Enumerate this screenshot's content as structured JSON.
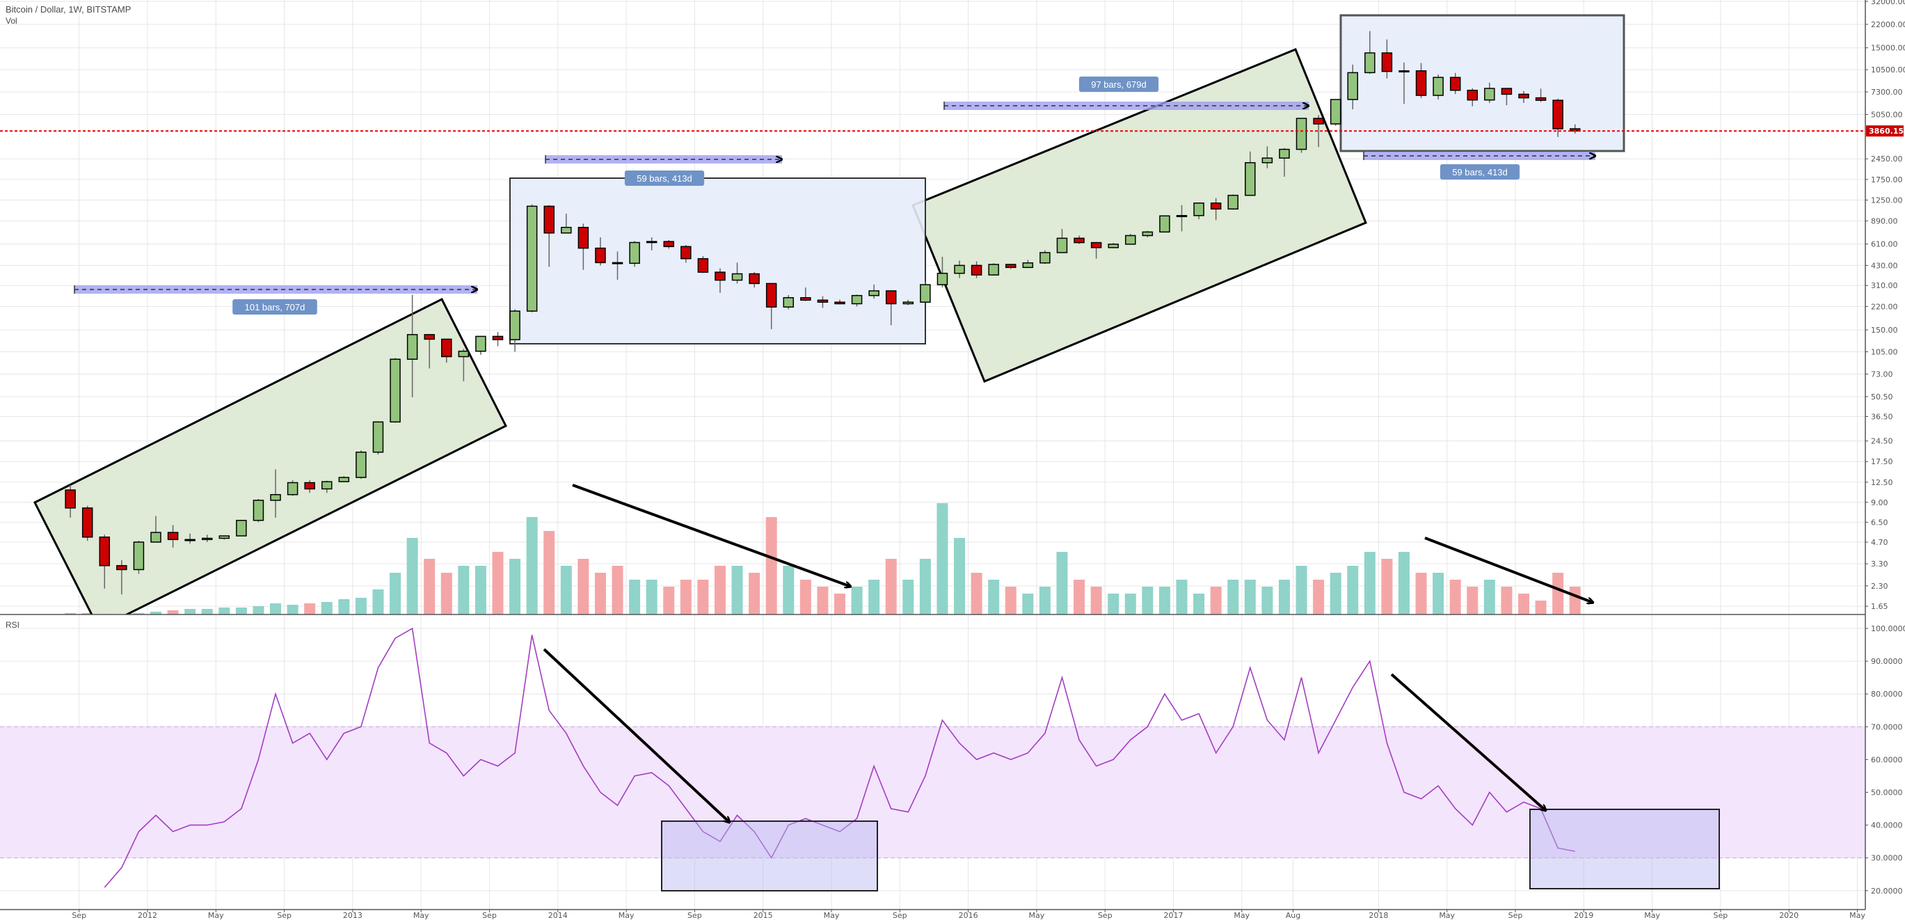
{
  "header": {
    "title": "Bitcoin / Dollar, 1W, BITSTAMP",
    "vol_label": "Vol",
    "rsi_label": "RSI"
  },
  "last_price": {
    "value": "3860.15",
    "color": "#cc0000"
  },
  "colors": {
    "up": "#93c47d",
    "down": "#cc0000",
    "vol_up": "#8fd3c9",
    "vol_down": "#f4a6a6",
    "channel_fill": "#dde9d5",
    "range_fill": "#e6edf9",
    "rsi_line": "#a33dc2",
    "rsi_band": "#f3e5fc",
    "date_range": "#9f9ff0",
    "badge": "#6f93c7"
  },
  "annotations": {
    "date_ranges": [
      "101 bars, 707d",
      "59 bars, 413d",
      "97 bars, 679d",
      "59 bars, 413d"
    ]
  },
  "chart_data": {
    "type": "candlestick",
    "title": "Bitcoin / Dollar, 1W, BITSTAMP",
    "y_scale": "log",
    "ylim": [
      1.5,
      32000
    ],
    "grid": true,
    "price_ticks": [
      "32000.00",
      "22000.00",
      "15000.00",
      "10500.00",
      "7300.00",
      "5050.00",
      "2450.00",
      "1750.00",
      "1250.00",
      "890.00",
      "610.00",
      "430.00",
      "310.00",
      "220.00",
      "150.00",
      "105.00",
      "73.00",
      "50.50",
      "36.50",
      "24.50",
      "17.50",
      "12.50",
      "9.00",
      "6.50",
      "4.70",
      "3.30",
      "2.30",
      "1.65"
    ],
    "rsi_ticks": [
      "100.0000",
      "90.0000",
      "80.0000",
      "70.0000",
      "60.0000",
      "50.0000",
      "40.0000",
      "30.0000",
      "20.0000"
    ],
    "rsi_band": [
      30,
      70
    ],
    "time_ticks": [
      {
        "label": "Sep",
        "date": "2011-09"
      },
      {
        "label": "2012",
        "date": "2012-01"
      },
      {
        "label": "May",
        "date": "2012-05"
      },
      {
        "label": "Sep",
        "date": "2012-09"
      },
      {
        "label": "2013",
        "date": "2013-01"
      },
      {
        "label": "May",
        "date": "2013-05"
      },
      {
        "label": "Sep",
        "date": "2013-09"
      },
      {
        "label": "2014",
        "date": "2014-01"
      },
      {
        "label": "May",
        "date": "2014-05"
      },
      {
        "label": "Sep",
        "date": "2014-09"
      },
      {
        "label": "2015",
        "date": "2015-01"
      },
      {
        "label": "May",
        "date": "2015-05"
      },
      {
        "label": "Sep",
        "date": "2015-09"
      },
      {
        "label": "2016",
        "date": "2016-01"
      },
      {
        "label": "May",
        "date": "2016-05"
      },
      {
        "label": "Sep",
        "date": "2016-09"
      },
      {
        "label": "2017",
        "date": "2017-01"
      },
      {
        "label": "May",
        "date": "2017-05"
      },
      {
        "label": "Aug",
        "date": "2017-08"
      },
      {
        "label": "2018",
        "date": "2018-01"
      },
      {
        "label": "May",
        "date": "2018-05"
      },
      {
        "label": "Sep",
        "date": "2018-09"
      },
      {
        "label": "2019",
        "date": "2019-01"
      },
      {
        "label": "May",
        "date": "2019-05"
      },
      {
        "label": "Sep",
        "date": "2019-09"
      },
      {
        "label": "2020",
        "date": "2020-01"
      },
      {
        "label": "May",
        "date": "2020-05"
      }
    ],
    "candles": [
      [
        "2011-08",
        11,
        12,
        7,
        8.2
      ],
      [
        "2011-09",
        8.2,
        8.5,
        4.8,
        5.1
      ],
      [
        "2011-10",
        5.1,
        5.3,
        2.2,
        3.2
      ],
      [
        "2011-11",
        3.2,
        3.5,
        2,
        3
      ],
      [
        "2011-12",
        3,
        4.8,
        2.8,
        4.7
      ],
      [
        "2012-01",
        4.7,
        7.2,
        4.7,
        5.5
      ],
      [
        "2012-02",
        5.5,
        6.2,
        4.3,
        4.9
      ],
      [
        "2012-03",
        4.9,
        5.4,
        4.6,
        4.9
      ],
      [
        "2012-04",
        4.9,
        5.3,
        4.7,
        5.0
      ],
      [
        "2012-05",
        5.0,
        5.2,
        4.9,
        5.2
      ],
      [
        "2012-06",
        5.2,
        6.7,
        5.2,
        6.7
      ],
      [
        "2012-07",
        6.7,
        9.5,
        6.5,
        9.3
      ],
      [
        "2012-08",
        9.3,
        15.4,
        7,
        10.2
      ],
      [
        "2012-09",
        10.2,
        12.9,
        10,
        12.4
      ],
      [
        "2012-10",
        12.4,
        12.9,
        10.5,
        11.2
      ],
      [
        "2012-11",
        11.2,
        12.8,
        10.5,
        12.6
      ],
      [
        "2012-12",
        12.6,
        13.8,
        12.5,
        13.5
      ],
      [
        "2013-01",
        13.5,
        21,
        13.2,
        20.4
      ],
      [
        "2013-02",
        20.4,
        33.5,
        19.6,
        33.4
      ],
      [
        "2013-03",
        33.4,
        95,
        33,
        93
      ],
      [
        "2013-04",
        93,
        266,
        50,
        139
      ],
      [
        "2013-05",
        139,
        140,
        80,
        129
      ],
      [
        "2013-06",
        129,
        129,
        88,
        97
      ],
      [
        "2013-07",
        97,
        110,
        65,
        106
      ],
      [
        "2013-08",
        106,
        135,
        100,
        135
      ],
      [
        "2013-09",
        135,
        145,
        115,
        128
      ],
      [
        "2013-10",
        128,
        210,
        105,
        204
      ],
      [
        "2013-11",
        204,
        1163,
        200,
        1130
      ],
      [
        "2013-12",
        1130,
        1150,
        420,
        730
      ],
      [
        "2014-01",
        730,
        1000,
        740,
        800
      ],
      [
        "2014-02",
        800,
        850,
        400,
        570
      ],
      [
        "2014-03",
        570,
        680,
        430,
        450
      ],
      [
        "2014-04",
        450,
        540,
        340,
        445
      ],
      [
        "2014-05",
        445,
        640,
        420,
        625
      ],
      [
        "2014-06",
        625,
        680,
        550,
        635
      ],
      [
        "2014-07",
        635,
        650,
        565,
        585
      ],
      [
        "2014-08",
        585,
        600,
        450,
        480
      ],
      [
        "2014-09",
        480,
        500,
        380,
        385
      ],
      [
        "2014-10",
        385,
        410,
        275,
        338
      ],
      [
        "2014-11",
        338,
        450,
        320,
        375
      ],
      [
        "2014-12",
        375,
        385,
        300,
        320
      ],
      [
        "2015-01",
        320,
        320,
        152,
        218
      ],
      [
        "2015-02",
        218,
        265,
        210,
        254
      ],
      [
        "2015-03",
        254,
        300,
        240,
        244
      ],
      [
        "2015-04",
        244,
        260,
        215,
        236
      ],
      [
        "2015-05",
        236,
        246,
        228,
        230
      ],
      [
        "2015-06",
        230,
        267,
        220,
        263
      ],
      [
        "2015-07",
        263,
        315,
        250,
        284
      ],
      [
        "2015-08",
        284,
        285,
        162,
        230
      ],
      [
        "2015-09",
        230,
        245,
        225,
        236
      ],
      [
        "2015-10",
        236,
        330,
        236,
        314
      ],
      [
        "2015-11",
        314,
        495,
        300,
        378
      ],
      [
        "2015-12",
        378,
        465,
        350,
        430
      ],
      [
        "2016-01",
        430,
        460,
        350,
        368
      ],
      [
        "2016-02",
        368,
        445,
        365,
        437
      ],
      [
        "2016-03",
        437,
        440,
        405,
        416
      ],
      [
        "2016-04",
        416,
        470,
        414,
        448
      ],
      [
        "2016-05",
        448,
        550,
        440,
        530
      ],
      [
        "2016-06",
        530,
        780,
        530,
        670
      ],
      [
        "2016-07",
        670,
        700,
        610,
        624
      ],
      [
        "2016-08",
        624,
        630,
        480,
        575
      ],
      [
        "2016-09",
        575,
        620,
        570,
        608
      ],
      [
        "2016-10",
        608,
        720,
        605,
        700
      ],
      [
        "2016-11",
        700,
        755,
        680,
        742
      ],
      [
        "2016-12",
        742,
        970,
        740,
        965
      ],
      [
        "2017-01",
        965,
        1150,
        750,
        970
      ],
      [
        "2017-02",
        970,
        1200,
        915,
        1190
      ],
      [
        "2017-03",
        1190,
        1290,
        900,
        1080
      ],
      [
        "2017-04",
        1080,
        1370,
        1070,
        1350
      ],
      [
        "2017-05",
        1350,
        2760,
        1350,
        2300
      ],
      [
        "2017-06",
        2300,
        3000,
        2100,
        2480
      ],
      [
        "2017-07",
        2480,
        2920,
        1830,
        2860
      ],
      [
        "2017-08",
        2860,
        4740,
        2700,
        4740
      ],
      [
        "2017-09",
        4740,
        5000,
        2970,
        4330
      ],
      [
        "2017-10",
        4330,
        6470,
        4200,
        6450
      ],
      [
        "2017-11",
        6450,
        11400,
        5500,
        10000
      ],
      [
        "2017-12",
        10000,
        19700,
        9800,
        13800
      ],
      [
        "2018-01",
        13800,
        17200,
        9100,
        10200
      ],
      [
        "2018-02",
        10200,
        11800,
        6000,
        10300
      ],
      [
        "2018-03",
        10300,
        11700,
        6600,
        6900
      ],
      [
        "2018-04",
        6900,
        9700,
        6450,
        9250
      ],
      [
        "2018-05",
        9250,
        9950,
        7050,
        7500
      ],
      [
        "2018-06",
        7500,
        7750,
        5780,
        6400
      ],
      [
        "2018-07",
        6400,
        8500,
        6100,
        7730
      ],
      [
        "2018-08",
        7730,
        7760,
        5880,
        7030
      ],
      [
        "2018-09",
        7030,
        7400,
        6100,
        6630
      ],
      [
        "2018-10",
        6630,
        7700,
        6200,
        6370
      ],
      [
        "2018-11",
        6370,
        6550,
        3500,
        4000
      ],
      [
        "2018-12",
        4000,
        4300,
        3700,
        3860.15
      ]
    ],
    "volume_relative": [
      1,
      1,
      1,
      1,
      1,
      2,
      3,
      4,
      4,
      5,
      5,
      6,
      8,
      7,
      8,
      9,
      11,
      12,
      18,
      30,
      55,
      40,
      30,
      35,
      35,
      45,
      40,
      70,
      60,
      35,
      40,
      30,
      35,
      25,
      25,
      20,
      25,
      25,
      35,
      35,
      30,
      70,
      35,
      25,
      20,
      15,
      20,
      25,
      40,
      25,
      40,
      80,
      55,
      30,
      25,
      20,
      15,
      20,
      45,
      25,
      20,
      15,
      15,
      20,
      20,
      25,
      15,
      20,
      25,
      25,
      20,
      25,
      35,
      25,
      30,
      35,
      45,
      40,
      45,
      30,
      30,
      25,
      20,
      25,
      20,
      15,
      10,
      30,
      20
    ],
    "rsi": [
      null,
      null,
      21,
      27,
      38,
      43,
      38,
      40,
      40,
      41,
      45,
      60,
      80,
      65,
      68,
      60,
      68,
      70,
      88,
      97,
      100,
      65,
      62,
      55,
      60,
      58,
      62,
      98,
      75,
      68,
      58,
      50,
      46,
      55,
      56,
      52,
      45,
      38,
      35,
      43,
      38,
      30,
      40,
      42,
      40,
      38,
      42,
      58,
      45,
      44,
      55,
      72,
      65,
      60,
      62,
      60,
      62,
      68,
      85,
      66,
      58,
      60,
      66,
      70,
      80,
      72,
      74,
      62,
      70,
      88,
      72,
      66,
      85,
      62,
      72,
      82,
      90,
      65,
      50,
      48,
      52,
      45,
      40,
      50,
      44,
      47,
      45,
      33,
      32
    ]
  }
}
